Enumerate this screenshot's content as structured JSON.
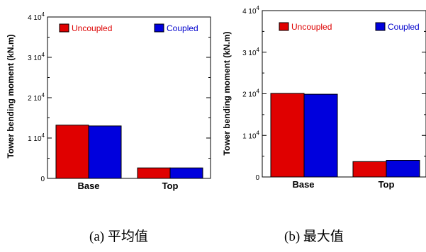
{
  "chart_data": [
    {
      "type": "bar",
      "ylabel": "Tower bending moment (kN.m)",
      "categories": [
        "Base",
        "Top"
      ],
      "ylim": [
        0,
        40000
      ],
      "yticks": [
        0,
        10000,
        20000,
        30000,
        40000
      ],
      "ytick_labels": [
        {
          "mantissa": "0",
          "exp": ""
        },
        {
          "mantissa": "1 10",
          "exp": "4"
        },
        {
          "mantissa": "2 10",
          "exp": "4"
        },
        {
          "mantissa": "3 10",
          "exp": "4"
        },
        {
          "mantissa": "4 10",
          "exp": "4"
        }
      ],
      "series": [
        {
          "name": "Uncoupled",
          "values": [
            13200,
            2600
          ]
        },
        {
          "name": "Coupled",
          "values": [
            13000,
            2600
          ]
        }
      ],
      "caption": "(a)  平均值"
    },
    {
      "type": "bar",
      "ylabel": "Tower bending moment (kN.m)",
      "categories": [
        "Base",
        "Top"
      ],
      "ylim": [
        0,
        40000
      ],
      "yticks": [
        0,
        10000,
        20000,
        30000,
        40000
      ],
      "ytick_labels": [
        {
          "mantissa": "0",
          "exp": ""
        },
        {
          "mantissa": "1 10",
          "exp": "4"
        },
        {
          "mantissa": "2 10",
          "exp": "4"
        },
        {
          "mantissa": "3 10",
          "exp": "4"
        },
        {
          "mantissa": "4 10",
          "exp": "4"
        }
      ],
      "series": [
        {
          "name": "Uncoupled",
          "values": [
            20100,
            3700
          ]
        },
        {
          "name": "Coupled",
          "values": [
            19900,
            4000
          ]
        }
      ],
      "caption": "(b)  最大值"
    }
  ],
  "colors": {
    "uncoupled": "#e00000",
    "coupled": "#0000dd",
    "uncoupled_text": "#dd0000",
    "coupled_text": "#0000cc"
  }
}
